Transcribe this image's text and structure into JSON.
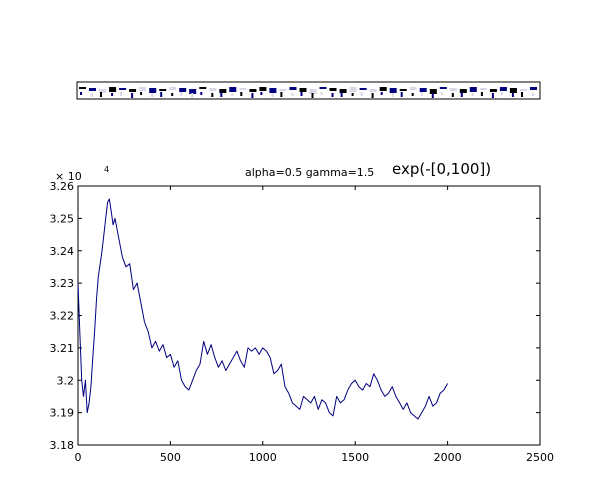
{
  "figure": {
    "exponent_base": "× 10",
    "exponent_power": "4",
    "annotation": "alpha=0.5  gamma=1.5",
    "title": "exp(-[0,100])"
  },
  "filter_strip": {
    "cells": 46,
    "colors": {
      "dark": "#000000",
      "blue": "#000080",
      "light": "#d8d8e8"
    }
  },
  "chart_data": {
    "type": "line",
    "title": "exp(-[0,100])",
    "xlabel": "",
    "ylabel": "",
    "xlim": [
      0,
      2500
    ],
    "ylim": [
      3.18,
      3.26
    ],
    "y_multiplier": "×10^4",
    "x_ticks": [
      0,
      500,
      1000,
      1500,
      2000,
      2500
    ],
    "y_ticks": [
      3.18,
      3.19,
      3.2,
      3.21,
      3.22,
      3.23,
      3.24,
      3.25,
      3.26
    ],
    "x_tick_labels": [
      "0",
      "500",
      "1000",
      "1500",
      "2000",
      "2500"
    ],
    "y_tick_labels": [
      "3.18",
      "3.19",
      "3.2",
      "3.21",
      "3.22",
      "3.23",
      "3.24",
      "3.25",
      "3.26"
    ],
    "grid": false,
    "series": [
      {
        "color": "#000080",
        "x": [
          0,
          10,
          20,
          30,
          40,
          50,
          60,
          70,
          80,
          90,
          100,
          110,
          120,
          130,
          140,
          150,
          160,
          170,
          180,
          190,
          200,
          220,
          240,
          260,
          280,
          300,
          320,
          340,
          360,
          380,
          400,
          420,
          440,
          460,
          480,
          500,
          520,
          540,
          560,
          580,
          600,
          620,
          640,
          660,
          680,
          700,
          720,
          740,
          760,
          780,
          800,
          820,
          840,
          860,
          880,
          900,
          920,
          940,
          960,
          980,
          1000,
          1020,
          1040,
          1060,
          1080,
          1100,
          1120,
          1140,
          1160,
          1180,
          1200,
          1220,
          1240,
          1260,
          1280,
          1300,
          1320,
          1340,
          1360,
          1380,
          1400,
          1420,
          1440,
          1460,
          1480,
          1500,
          1520,
          1540,
          1560,
          1580,
          1600,
          1620,
          1640,
          1660,
          1680,
          1700,
          1720,
          1740,
          1760,
          1780,
          1800,
          1820,
          1840,
          1860,
          1880,
          1900,
          1920,
          1940,
          1960,
          1980,
          2000
        ],
        "y": [
          3.23,
          3.215,
          3.2,
          3.195,
          3.2,
          3.19,
          3.193,
          3.198,
          3.207,
          3.215,
          3.225,
          3.232,
          3.236,
          3.24,
          3.245,
          3.25,
          3.255,
          3.256,
          3.252,
          3.248,
          3.25,
          3.244,
          3.238,
          3.235,
          3.236,
          3.228,
          3.23,
          3.224,
          3.218,
          3.215,
          3.21,
          3.212,
          3.209,
          3.211,
          3.207,
          3.208,
          3.204,
          3.206,
          3.2,
          3.198,
          3.197,
          3.2,
          3.203,
          3.205,
          3.212,
          3.208,
          3.211,
          3.207,
          3.204,
          3.206,
          3.203,
          3.205,
          3.207,
          3.209,
          3.206,
          3.204,
          3.21,
          3.209,
          3.21,
          3.208,
          3.21,
          3.209,
          3.207,
          3.202,
          3.203,
          3.205,
          3.198,
          3.196,
          3.193,
          3.192,
          3.191,
          3.195,
          3.194,
          3.193,
          3.195,
          3.191,
          3.194,
          3.193,
          3.19,
          3.189,
          3.195,
          3.193,
          3.194,
          3.197,
          3.199,
          3.2,
          3.198,
          3.197,
          3.199,
          3.198,
          3.202,
          3.2,
          3.197,
          3.195,
          3.196,
          3.198,
          3.195,
          3.193,
          3.191,
          3.193,
          3.19,
          3.189,
          3.188,
          3.19,
          3.192,
          3.195,
          3.192,
          3.193,
          3.196,
          3.197,
          3.199
        ]
      }
    ]
  }
}
